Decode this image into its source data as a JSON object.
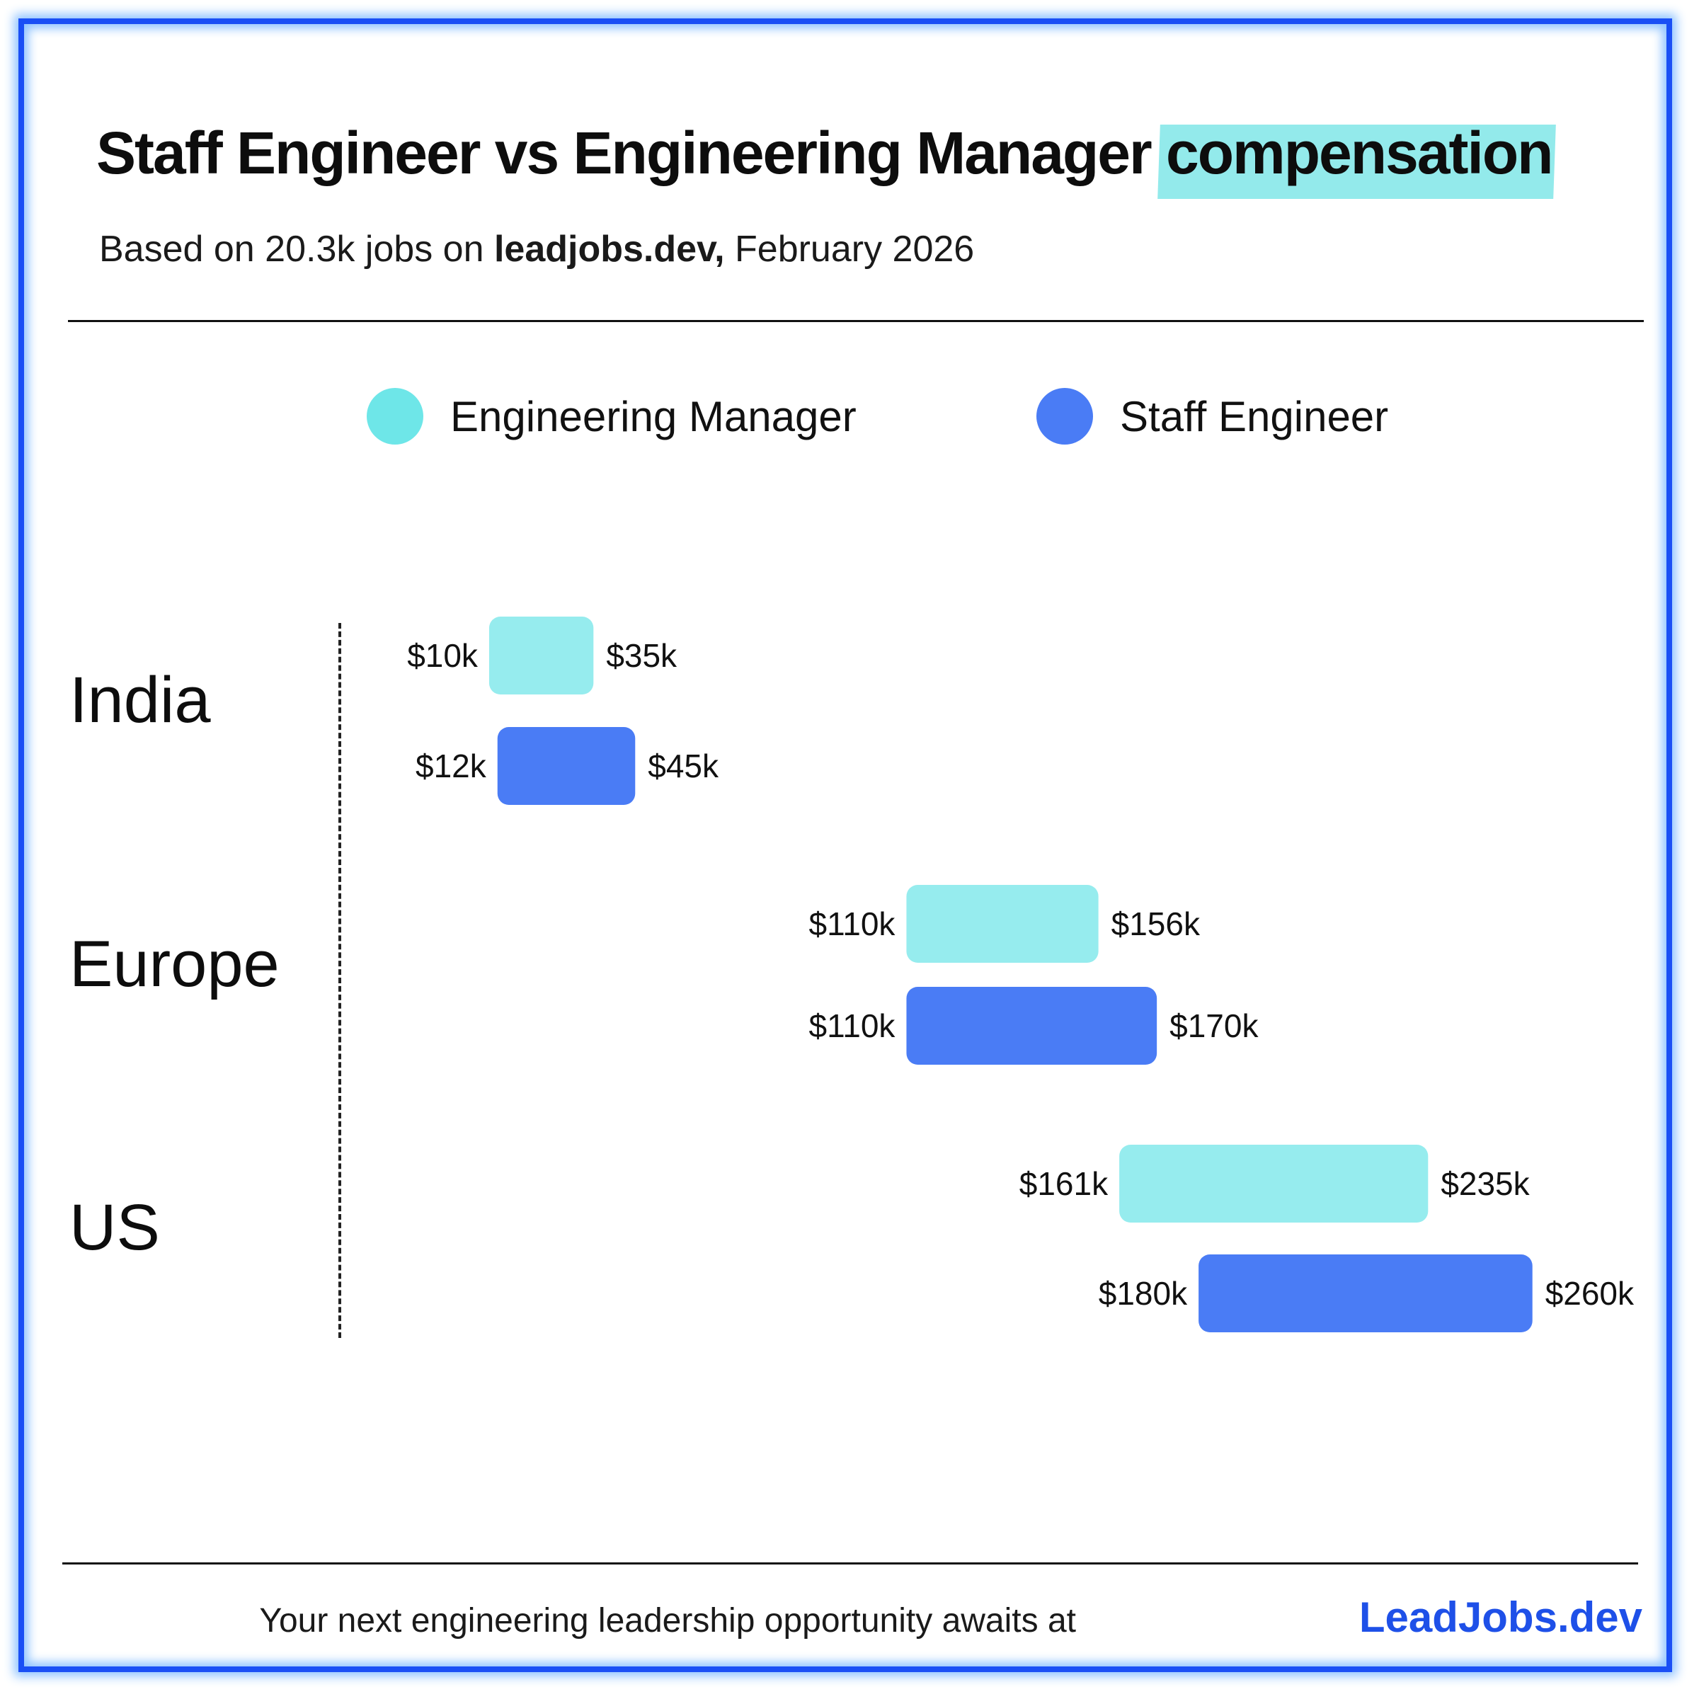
{
  "header": {
    "title_main": "Staff Engineer vs Engineering Manager",
    "title_highlight": "compensation",
    "subtitle_prefix": "Based on 20.3k jobs on",
    "subtitle_site": "leadjobs.dev,",
    "subtitle_suffix": "February 2026"
  },
  "legend": [
    {
      "label": "Engineering Manager",
      "color": "#6ee6e8"
    },
    {
      "label": "Staff Engineer",
      "color": "#4a7cf5"
    }
  ],
  "chart_data": {
    "type": "range_bar",
    "title": "Staff Engineer vs Engineering Manager compensation",
    "subtitle": "Based on 20.3k jobs on leadjobs.dev, February 2026",
    "unit": "USD thousands per year",
    "categories": [
      "India",
      "Europe",
      "US"
    ],
    "series": [
      {
        "name": "Engineering Manager",
        "color": "#96ecee",
        "ranges": [
          {
            "low": 10,
            "high": 35,
            "low_label": "$10k",
            "high_label": "$35k"
          },
          {
            "low": 110,
            "high": 156,
            "low_label": "$110k",
            "high_label": "$156k"
          },
          {
            "low": 161,
            "high": 235,
            "low_label": "$161k",
            "high_label": "$235k"
          }
        ]
      },
      {
        "name": "Staff Engineer",
        "color": "#4a7cf5",
        "ranges": [
          {
            "low": 12,
            "high": 45,
            "low_label": "$12k",
            "high_label": "$45k"
          },
          {
            "low": 110,
            "high": 170,
            "low_label": "$110k",
            "high_label": "$170k"
          },
          {
            "low": 180,
            "high": 260,
            "low_label": "$180k",
            "high_label": "$260k"
          }
        ]
      }
    ],
    "xlim": [
      0,
      260
    ],
    "grid": false,
    "legend_position": "top"
  },
  "footer": {
    "text": "Your next engineering leadership opportunity awaits at",
    "brand": "LeadJobs.dev"
  }
}
